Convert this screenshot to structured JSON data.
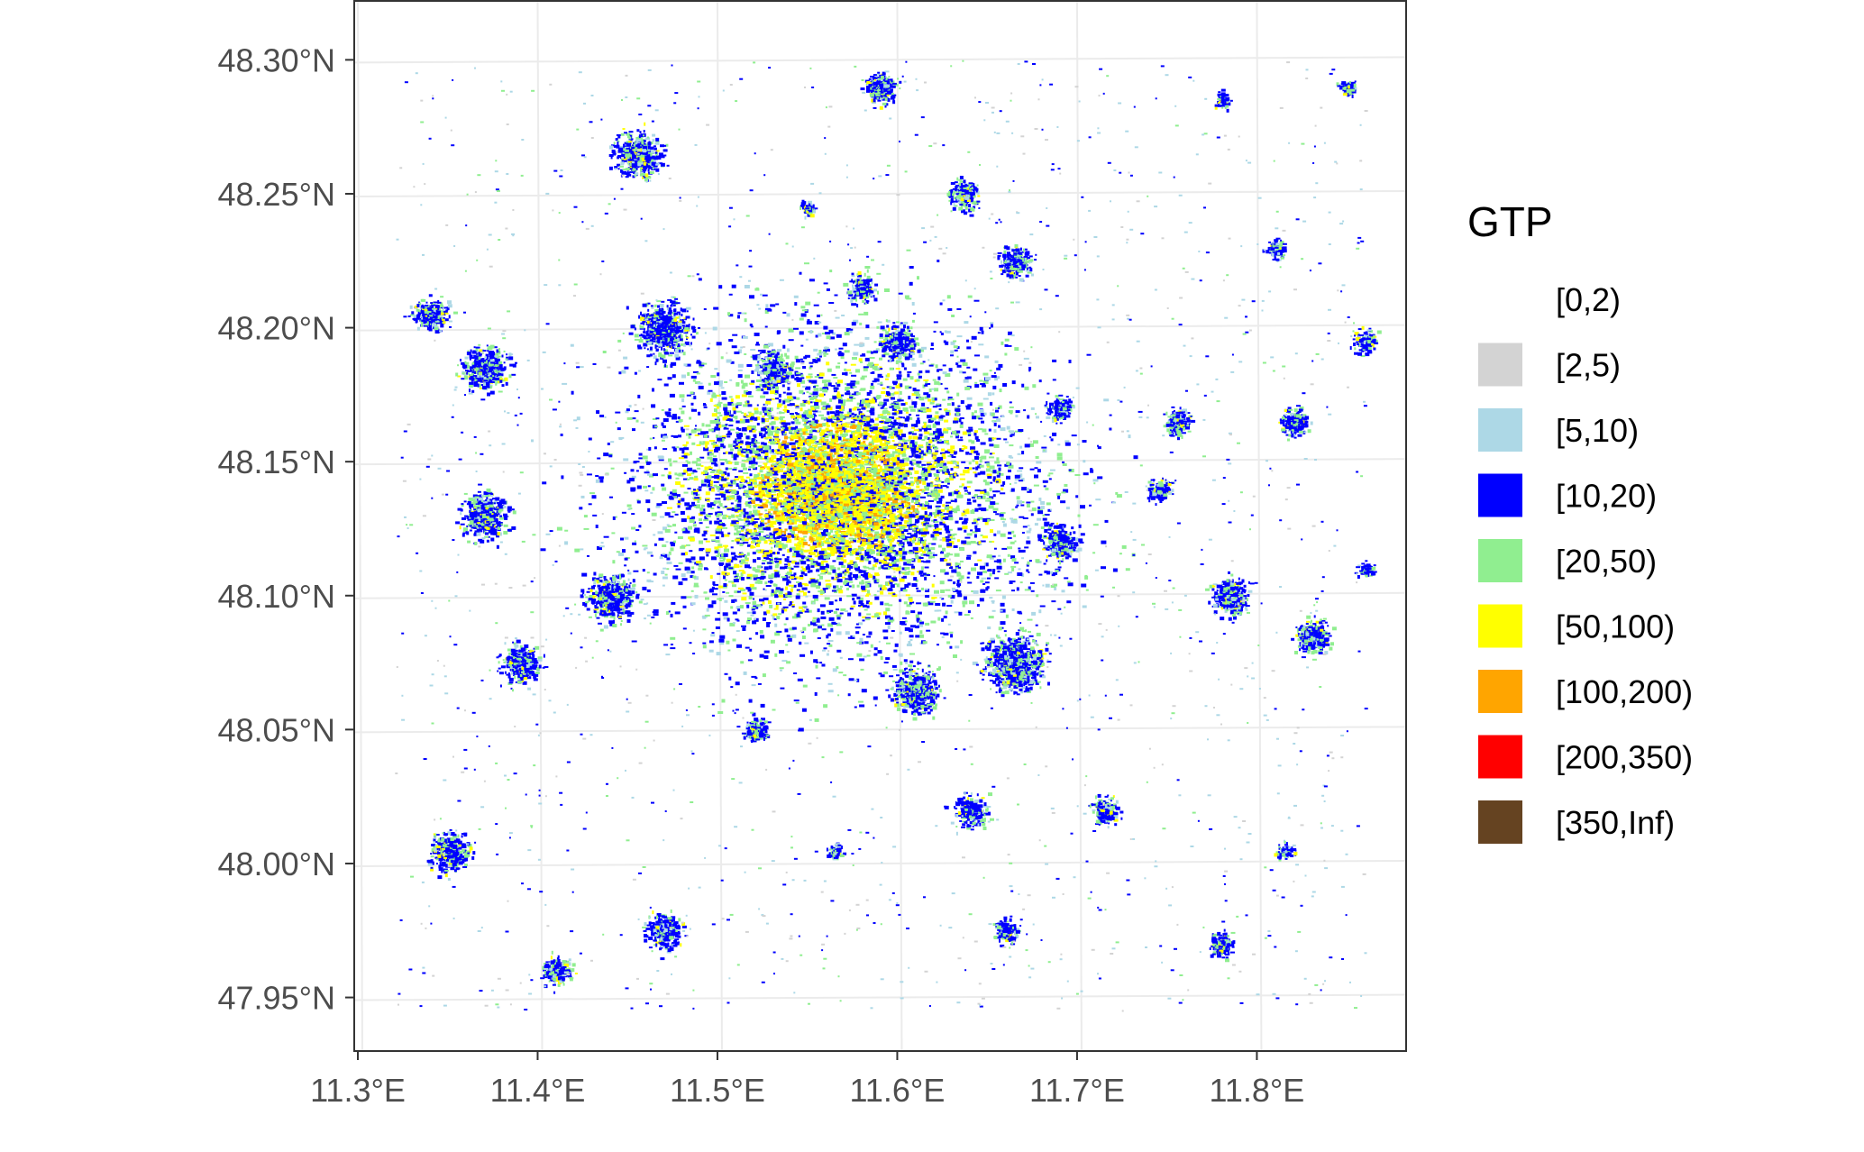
{
  "map": {
    "x_ticks": [
      {
        "value": 11.3,
        "label": "11.3°E"
      },
      {
        "value": 11.4,
        "label": "11.4°E"
      },
      {
        "value": 11.5,
        "label": "11.5°E"
      },
      {
        "value": 11.6,
        "label": "11.6°E"
      },
      {
        "value": 11.7,
        "label": "11.7°E"
      },
      {
        "value": 11.8,
        "label": "11.8°E"
      }
    ],
    "y_ticks": [
      {
        "value": 48.3,
        "label": "48.30°N"
      },
      {
        "value": 48.25,
        "label": "48.25°N"
      },
      {
        "value": 48.2,
        "label": "48.20°N"
      },
      {
        "value": 48.15,
        "label": "48.15°N"
      },
      {
        "value": 48.1,
        "label": "48.10°N"
      },
      {
        "value": 48.05,
        "label": "48.05°N"
      },
      {
        "value": 48.0,
        "label": "48.00°N"
      },
      {
        "value": 47.95,
        "label": "47.95°N"
      }
    ],
    "xlim": [
      11.298,
      11.883
    ],
    "ylim": [
      47.93,
      48.322
    ],
    "legend": {
      "title": "GTP",
      "position": "right",
      "items": [
        {
          "label": "[0,2)",
          "color": "#ffffff"
        },
        {
          "label": "[2,5)",
          "color": "#d3d3d3"
        },
        {
          "label": "[5,10)",
          "color": "#add8e6"
        },
        {
          "label": "[10,20)",
          "color": "#0000ff"
        },
        {
          "label": "[20,50)",
          "color": "#90ee90"
        },
        {
          "label": "[50,100)",
          "color": "#ffff00"
        },
        {
          "label": "[100,200)",
          "color": "#ffa500"
        },
        {
          "label": "[200,350)",
          "color": "#ff0000"
        },
        {
          "label": "[350,Inf)",
          "color": "#654321"
        }
      ]
    }
  }
}
